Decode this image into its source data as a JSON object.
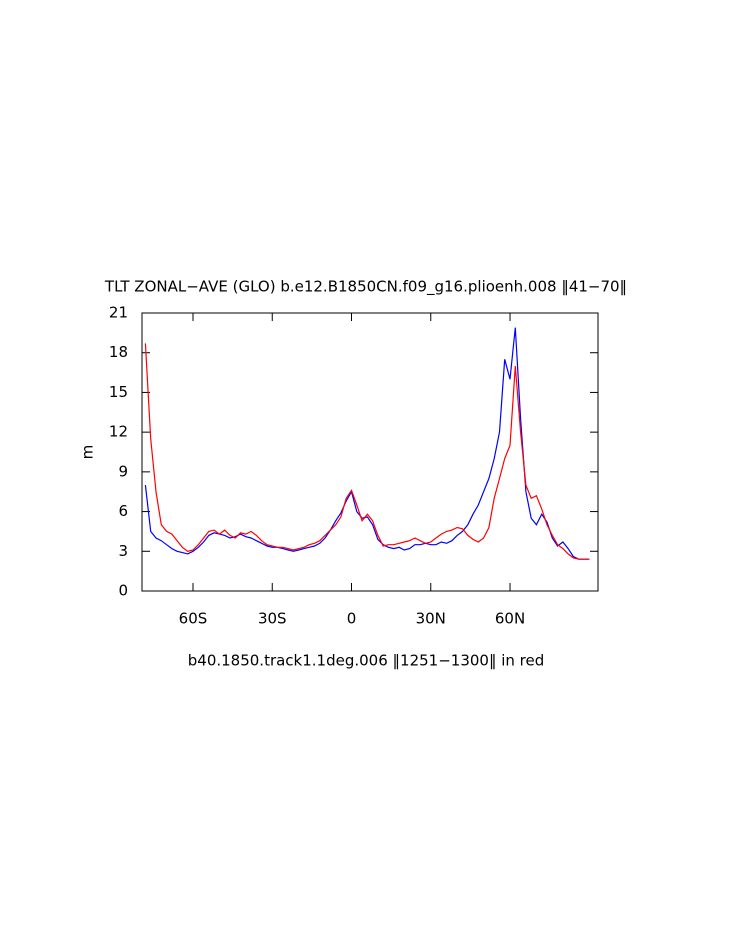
{
  "chart_data": {
    "type": "line",
    "title": "TLT ZONAL−AVE (GLO) b.e12.B1850CN.f09_g16.plioenh.008 ‖41−70‖",
    "subtitle": "b40.1850.track1.1deg.006 ‖1251−1300‖ in red",
    "y_label": "m",
    "x": [
      -78,
      -76,
      -74,
      -72,
      -70,
      -68,
      -66,
      -64,
      -62,
      -60,
      -58,
      -56,
      -54,
      -52,
      -50,
      -48,
      -46,
      -44,
      -42,
      -40,
      -38,
      -36,
      -34,
      -32,
      -30,
      -28,
      -26,
      -24,
      -22,
      -20,
      -18,
      -16,
      -14,
      -12,
      -10,
      -8,
      -6,
      -4,
      -2,
      0,
      2,
      4,
      6,
      8,
      10,
      12,
      14,
      16,
      18,
      20,
      22,
      24,
      26,
      28,
      30,
      32,
      34,
      36,
      38,
      40,
      42,
      44,
      46,
      48,
      50,
      52,
      54,
      56,
      58,
      60,
      62,
      64,
      66,
      68,
      70,
      72,
      74,
      76,
      78,
      80,
      82,
      84,
      86,
      88,
      90
    ],
    "series": [
      {
        "color": "#0000ff",
        "values": [
          8.0,
          4.5,
          4.0,
          3.8,
          3.5,
          3.2,
          3.0,
          2.9,
          2.8,
          3.0,
          3.3,
          3.7,
          4.2,
          4.4,
          4.3,
          4.2,
          4.0,
          4.1,
          4.3,
          4.1,
          4.0,
          3.8,
          3.6,
          3.4,
          3.3,
          3.3,
          3.2,
          3.1,
          3.0,
          3.1,
          3.2,
          3.3,
          3.4,
          3.6,
          4.0,
          4.6,
          5.3,
          5.9,
          6.8,
          7.5,
          6.0,
          5.5,
          5.6,
          5.0,
          3.9,
          3.5,
          3.3,
          3.2,
          3.3,
          3.1,
          3.2,
          3.5,
          3.5,
          3.6,
          3.5,
          3.5,
          3.7,
          3.6,
          3.8,
          4.2,
          4.5,
          5.0,
          5.8,
          6.5,
          7.5,
          8.5,
          10.0,
          12.0,
          17.5,
          16.0,
          19.9,
          13.0,
          7.5,
          5.5,
          5.0,
          5.8,
          5.2,
          4.0,
          3.4,
          3.7,
          3.2,
          2.6,
          2.4,
          2.4,
          2.4
        ]
      },
      {
        "color": "#ff0000",
        "values": [
          18.7,
          11.5,
          7.5,
          5.0,
          4.5,
          4.3,
          3.8,
          3.3,
          3.0,
          3.1,
          3.5,
          4.0,
          4.5,
          4.6,
          4.3,
          4.6,
          4.2,
          4.0,
          4.4,
          4.3,
          4.5,
          4.2,
          3.8,
          3.5,
          3.4,
          3.3,
          3.3,
          3.2,
          3.1,
          3.2,
          3.3,
          3.5,
          3.6,
          3.8,
          4.2,
          4.6,
          5.0,
          5.6,
          7.0,
          7.6,
          6.5,
          5.3,
          5.8,
          5.3,
          4.2,
          3.4,
          3.5,
          3.5,
          3.6,
          3.7,
          3.8,
          4.0,
          3.8,
          3.6,
          3.7,
          4.0,
          4.3,
          4.5,
          4.6,
          4.8,
          4.7,
          4.2,
          3.9,
          3.7,
          4.0,
          4.8,
          7.0,
          8.5,
          10.0,
          11.0,
          17.0,
          12.0,
          8.0,
          7.0,
          7.2,
          6.2,
          5.0,
          4.2,
          3.5,
          3.2,
          2.8,
          2.5,
          2.4,
          2.4,
          2.4
        ]
      }
    ],
    "xlim": [
      -79.3,
      93.3
    ],
    "xticks": [
      {
        "value": -60,
        "label": "60S"
      },
      {
        "value": -30,
        "label": "30S"
      },
      0,
      {
        "value": 30,
        "label": "30N"
      },
      {
        "value": 60,
        "label": "60N"
      }
    ],
    "ylim": [
      0,
      21
    ],
    "yticks": [
      0,
      3,
      6,
      9,
      12,
      15,
      18,
      21
    ]
  }
}
